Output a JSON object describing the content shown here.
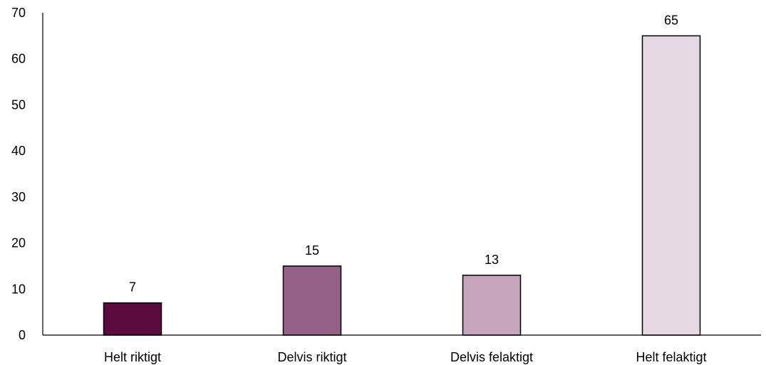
{
  "chart_data": {
    "type": "bar",
    "categories": [
      "Helt riktigt",
      "Delvis riktigt",
      "Delvis felaktigt",
      "Helt felaktigt"
    ],
    "values": [
      7,
      15,
      13,
      65
    ],
    "data_labels": [
      "7",
      "15",
      "13",
      "65"
    ],
    "bar_colors": [
      "#5c0b3f",
      "#956186",
      "#c6a4bb",
      "#e6d8e2"
    ],
    "bar_outline_color": "#000000",
    "ylim": [
      0,
      70
    ],
    "yticks": [
      0,
      10,
      20,
      30,
      40,
      50,
      60,
      70
    ],
    "title": "",
    "xlabel": "",
    "ylabel": "",
    "grid": false,
    "legend": "none"
  }
}
